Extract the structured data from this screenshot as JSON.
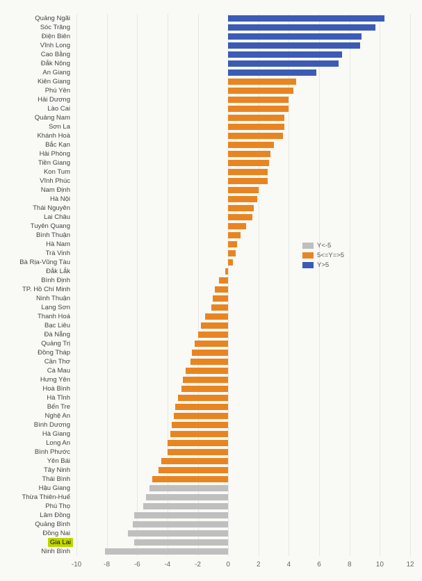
{
  "chart": {
    "type": "bar-horizontal",
    "background_color": "#f9f9f6",
    "grid_color": "#e6e6e3",
    "text_color": "#444",
    "label_fontsize": 9.5,
    "x_axis": {
      "min": -10,
      "max": 12,
      "tick_step": 2,
      "ticks": [
        -10,
        -8,
        -6,
        -4,
        -2,
        0,
        2,
        4,
        6,
        8,
        10,
        12
      ]
    },
    "legend": {
      "position": "right",
      "items": [
        {
          "label": "Y<-5",
          "color": "#bfbfbf"
        },
        {
          "label": "5<=Y=>5",
          "color": "#e98521"
        },
        {
          "label": "Y>5",
          "color": "#3b5bb5"
        }
      ]
    },
    "colors": {
      "low": "#bfbfbf",
      "mid": "#e98521",
      "high": "#3b5bb5",
      "highlight_bg": "#bdd600"
    },
    "data": [
      {
        "label": "Quảng Ngãi",
        "value": 10.3,
        "group": "high"
      },
      {
        "label": "Sóc Trăng",
        "value": 9.7,
        "group": "high"
      },
      {
        "label": "Điện Biên",
        "value": 8.8,
        "group": "high"
      },
      {
        "label": "Vĩnh Long",
        "value": 8.7,
        "group": "high"
      },
      {
        "label": "Cao Bằng",
        "value": 7.5,
        "group": "high"
      },
      {
        "label": "Đắk Nông",
        "value": 7.3,
        "group": "high"
      },
      {
        "label": "An Giang",
        "value": 5.8,
        "group": "high"
      },
      {
        "label": "Kiên Giang",
        "value": 4.5,
        "group": "mid"
      },
      {
        "label": "Phú Yên",
        "value": 4.3,
        "group": "mid"
      },
      {
        "label": "Hải Dương",
        "value": 4.0,
        "group": "mid"
      },
      {
        "label": "Lào Cai",
        "value": 4.0,
        "group": "mid"
      },
      {
        "label": "Quảng Nam",
        "value": 3.7,
        "group": "mid"
      },
      {
        "label": "Sơn La",
        "value": 3.7,
        "group": "mid"
      },
      {
        "label": "Khánh Hoà",
        "value": 3.6,
        "group": "mid"
      },
      {
        "label": "Bắc Kạn",
        "value": 3.0,
        "group": "mid"
      },
      {
        "label": "Hải Phòng",
        "value": 2.8,
        "group": "mid"
      },
      {
        "label": "Tiền Giang",
        "value": 2.7,
        "group": "mid"
      },
      {
        "label": "Kon Tum",
        "value": 2.6,
        "group": "mid"
      },
      {
        "label": "Vĩnh Phúc",
        "value": 2.6,
        "group": "mid"
      },
      {
        "label": "Nam Định",
        "value": 2.0,
        "group": "mid"
      },
      {
        "label": "Hà Nội",
        "value": 1.9,
        "group": "mid"
      },
      {
        "label": "Thái Nguyên",
        "value": 1.7,
        "group": "mid"
      },
      {
        "label": "Lai Châu",
        "value": 1.6,
        "group": "mid"
      },
      {
        "label": "Tuyên Quang",
        "value": 1.2,
        "group": "mid"
      },
      {
        "label": "Bình Thuận",
        "value": 0.8,
        "group": "mid"
      },
      {
        "label": "Hà Nam",
        "value": 0.6,
        "group": "mid"
      },
      {
        "label": "Trà Vinh",
        "value": 0.5,
        "group": "mid"
      },
      {
        "label": "Bà Rịa-Vũng Tàu",
        "value": 0.3,
        "group": "mid"
      },
      {
        "label": "Đắk Lắk",
        "value": -0.2,
        "group": "mid"
      },
      {
        "label": "Bình Định",
        "value": -0.6,
        "group": "mid"
      },
      {
        "label": "TP. Hồ Chí Minh",
        "value": -0.9,
        "group": "mid"
      },
      {
        "label": "Ninh Thuận",
        "value": -1.0,
        "group": "mid"
      },
      {
        "label": "Lạng Sơn",
        "value": -1.1,
        "group": "mid"
      },
      {
        "label": "Thanh Hoá",
        "value": -1.5,
        "group": "mid"
      },
      {
        "label": "Bạc Liêu",
        "value": -1.8,
        "group": "mid"
      },
      {
        "label": "Đà Nẵng",
        "value": -2.0,
        "group": "mid"
      },
      {
        "label": "Quảng Trị",
        "value": -2.2,
        "group": "mid"
      },
      {
        "label": "Đồng Tháp",
        "value": -2.4,
        "group": "mid"
      },
      {
        "label": "Cần Thơ",
        "value": -2.5,
        "group": "mid"
      },
      {
        "label": "Cà Mau",
        "value": -2.8,
        "group": "mid"
      },
      {
        "label": "Hưng Yên",
        "value": -3.0,
        "group": "mid"
      },
      {
        "label": "Hoà Bình",
        "value": -3.1,
        "group": "mid"
      },
      {
        "label": "Hà Tĩnh",
        "value": -3.3,
        "group": "mid"
      },
      {
        "label": "Bến Tre",
        "value": -3.5,
        "group": "mid"
      },
      {
        "label": "Nghệ An",
        "value": -3.6,
        "group": "mid"
      },
      {
        "label": "Bình Dương",
        "value": -3.7,
        "group": "mid"
      },
      {
        "label": "Hà Giang",
        "value": -3.8,
        "group": "mid"
      },
      {
        "label": "Long An",
        "value": -4.0,
        "group": "mid"
      },
      {
        "label": "Bình Phước",
        "value": -4.0,
        "group": "mid"
      },
      {
        "label": "Yên Bái",
        "value": -4.4,
        "group": "mid"
      },
      {
        "label": "Tây Ninh",
        "value": -4.6,
        "group": "mid"
      },
      {
        "label": "Thái Bình",
        "value": -5.0,
        "group": "mid"
      },
      {
        "label": "Hậu Giang",
        "value": -5.2,
        "group": "low"
      },
      {
        "label": "Thừa Thiên-Huế",
        "value": -5.4,
        "group": "low"
      },
      {
        "label": "Phú Thọ",
        "value": -5.6,
        "group": "low"
      },
      {
        "label": "Lâm Đồng",
        "value": -6.2,
        "group": "low"
      },
      {
        "label": "Quảng Bình",
        "value": -6.3,
        "group": "low"
      },
      {
        "label": "Đồng Nai",
        "value": -6.6,
        "group": "low"
      },
      {
        "label": "Gia Lai",
        "value": -6.2,
        "group": "low",
        "highlighted": true
      },
      {
        "label": "Ninh Bình",
        "value": -8.1,
        "group": "low"
      }
    ]
  }
}
